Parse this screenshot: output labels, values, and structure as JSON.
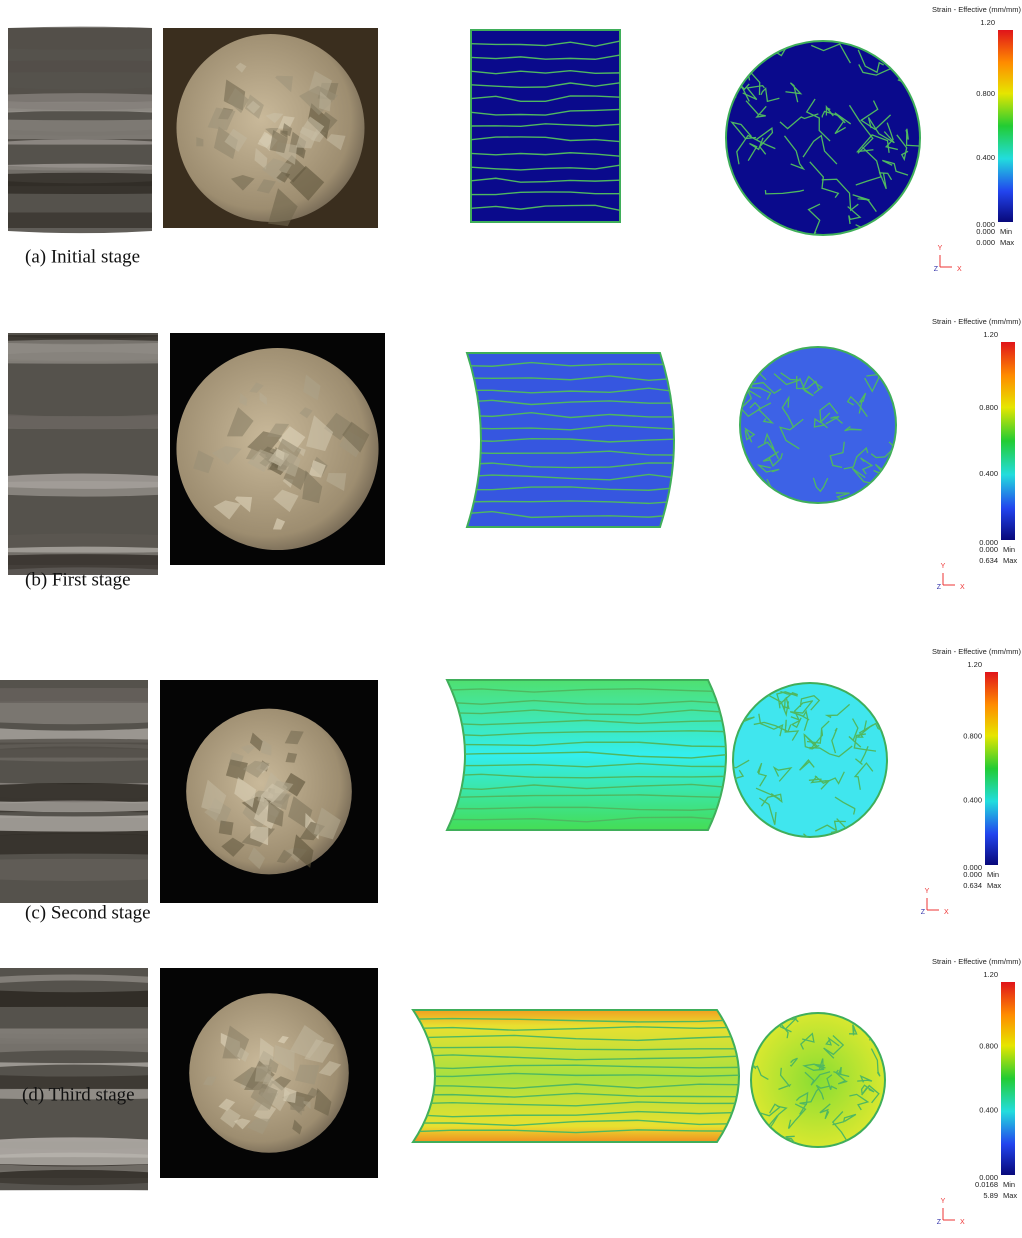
{
  "panels": [
    {
      "caption": "(a) Initial stage",
      "legend": {
        "title": "Strain - Effective (mm/mm)",
        "ticks": [
          "1.20",
          "0.800",
          "0.400",
          "0.000"
        ],
        "min": "0.000",
        "min_label": "Min",
        "max": "0.000",
        "max_label": "Max",
        "axes": [
          "Y",
          "Z",
          "X"
        ]
      }
    },
    {
      "caption": "(b) First stage",
      "legend": {
        "title": "Strain - Effective (mm/mm)",
        "ticks": [
          "1.20",
          "0.800",
          "0.400",
          "0.000"
        ],
        "min": "0.000",
        "min_label": "Min",
        "max": "0.634",
        "max_label": "Max",
        "axes": [
          "Y",
          "Z",
          "X"
        ]
      }
    },
    {
      "caption": "(c) Second stage",
      "legend": {
        "title": "Strain - Effective (mm/mm)",
        "ticks": [
          "1.20",
          "0.800",
          "0.400",
          "0.000"
        ],
        "min": "0.000",
        "min_label": "Min",
        "max": "0.634",
        "max_label": "Max",
        "axes": [
          "Y",
          "Z",
          "X"
        ]
      }
    },
    {
      "caption": "(d) Third stage",
      "legend": {
        "title": "Strain - Effective (mm/mm)",
        "ticks": [
          "1.20",
          "0.800",
          "0.400",
          "0.000"
        ],
        "min": "0.0168",
        "min_label": "Min",
        "max": "5.89",
        "max_label": "Max",
        "axes": [
          "Y",
          "Z",
          "X"
        ]
      }
    }
  ]
}
